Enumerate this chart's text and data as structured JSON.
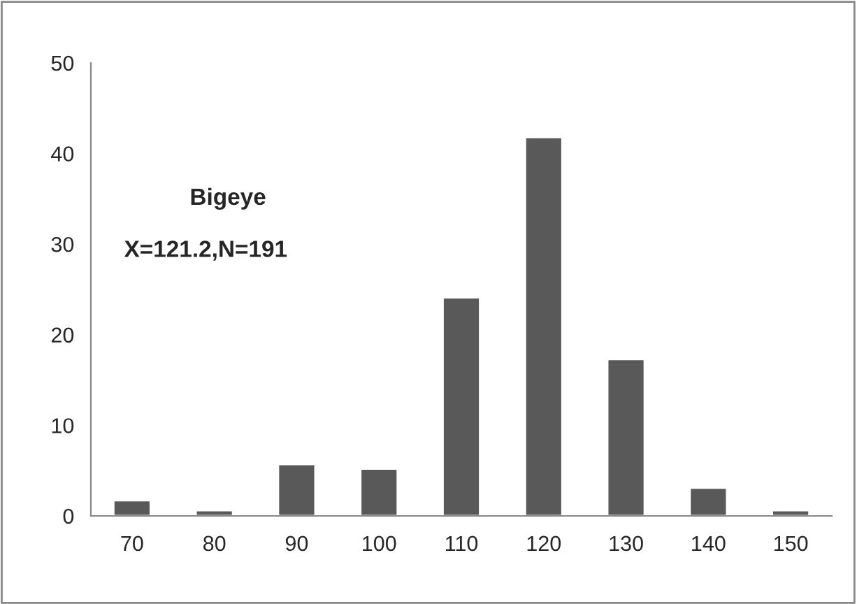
{
  "chart_data": {
    "type": "bar",
    "categories": [
      "70",
      "80",
      "90",
      "100",
      "110",
      "120",
      "130",
      "140",
      "150"
    ],
    "values": [
      1.7,
      0.6,
      5.7,
      5.2,
      24.1,
      41.8,
      17.3,
      3.1,
      0.6
    ],
    "color": "#595959",
    "ylim": [
      0,
      50
    ],
    "yticks": [
      0,
      10,
      20,
      30,
      40,
      50
    ],
    "grid": false,
    "annotations": [
      "Bigeye",
      "X=121.2,N=191"
    ]
  }
}
